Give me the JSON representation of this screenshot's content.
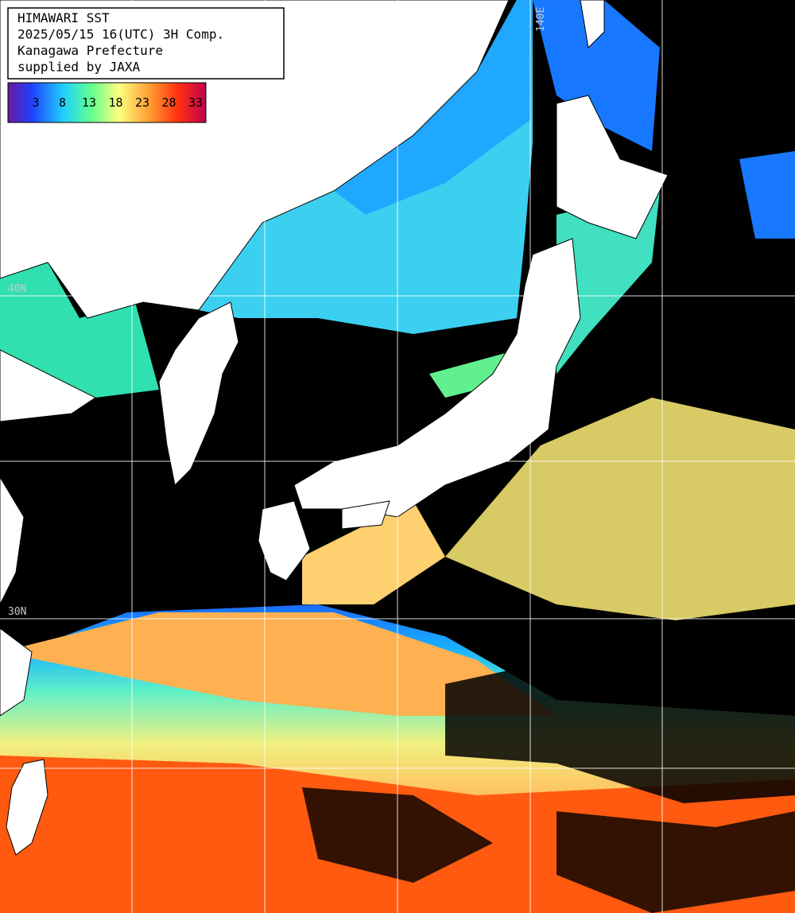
{
  "header": {
    "lines": [
      "HIMAWARI SST",
      "2025/05/15 16(UTC) 3H Comp.",
      "Kanagawa Prefecture",
      "supplied by JAXA"
    ]
  },
  "colorbar": {
    "labels": [
      3,
      8,
      13,
      18,
      23,
      28,
      33
    ]
  },
  "grid": {
    "lat_labels": [
      "40N",
      "30N"
    ],
    "lon_labels": [
      "140E"
    ]
  }
}
